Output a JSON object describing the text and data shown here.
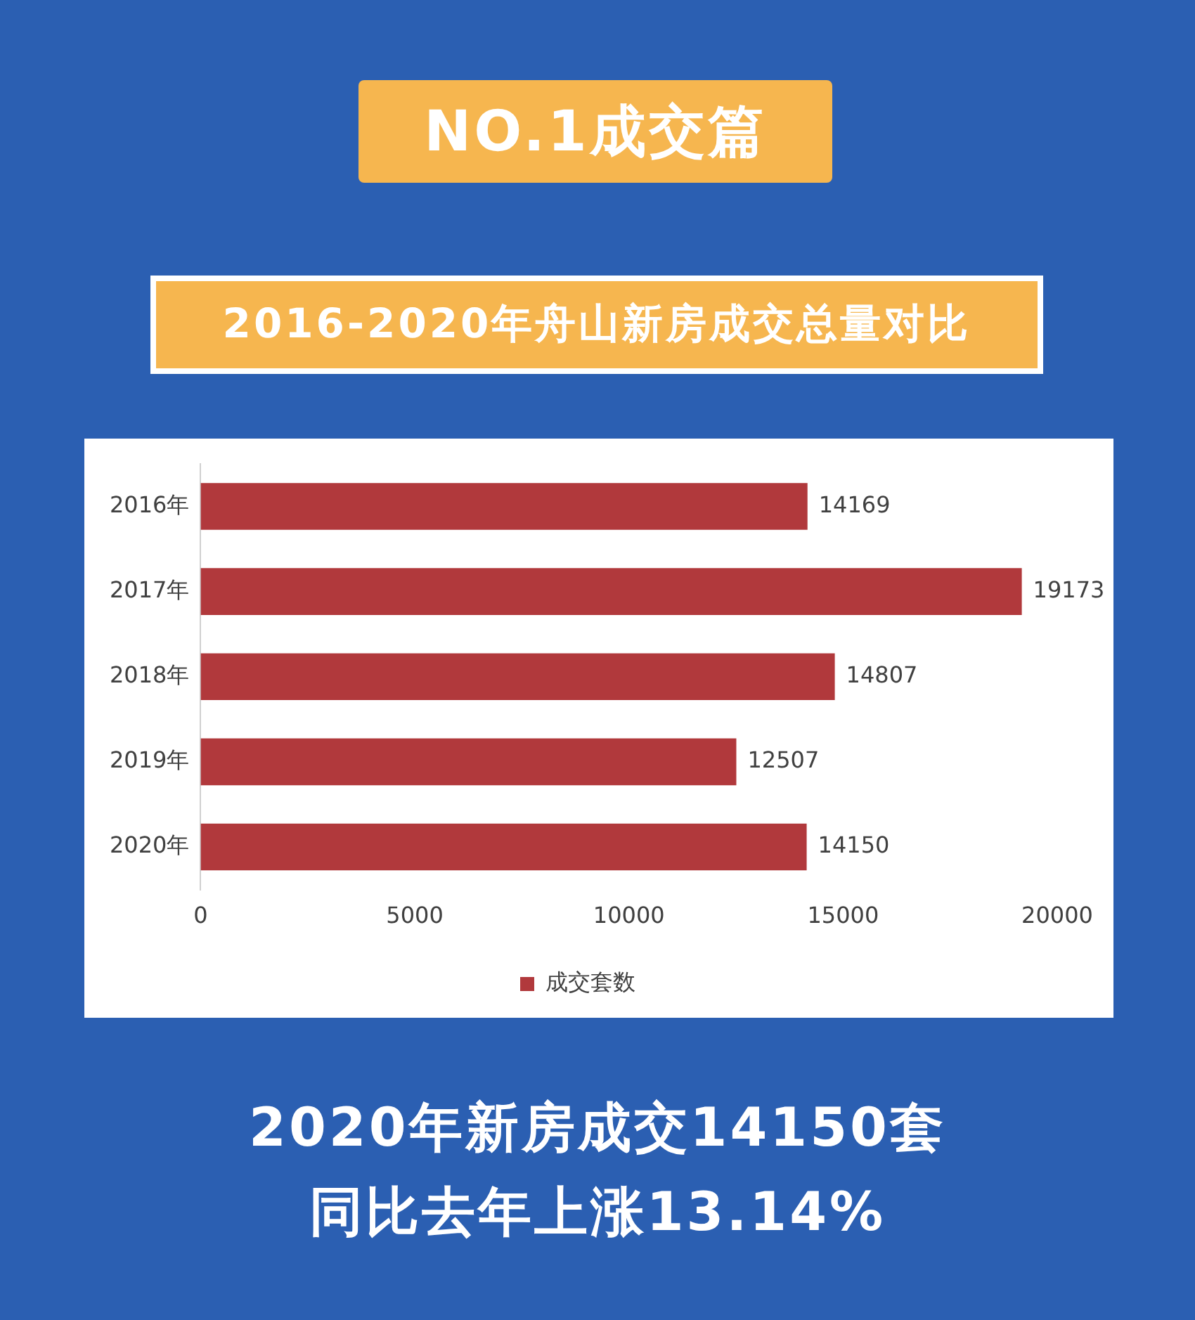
{
  "chart_data": {
    "type": "bar",
    "orientation": "horizontal",
    "title": "2016-2020年舟山新房成交总量对比",
    "annotations": [
      "NO.1成交篇",
      "2020年新房成交14150套",
      "同比去年上涨13.14%"
    ],
    "categories": [
      "2016年",
      "2017年",
      "2018年",
      "2019年",
      "2020年"
    ],
    "series": [
      {
        "name": "成交套数",
        "color": "#b1393c",
        "values": [
          14169,
          19173,
          14807,
          12507,
          14150
        ]
      }
    ],
    "xlim": [
      0,
      20000
    ],
    "xticks": [
      0,
      5000,
      10000,
      15000,
      20000
    ],
    "data_labels": true,
    "grid": false,
    "legend": "bottom"
  }
}
